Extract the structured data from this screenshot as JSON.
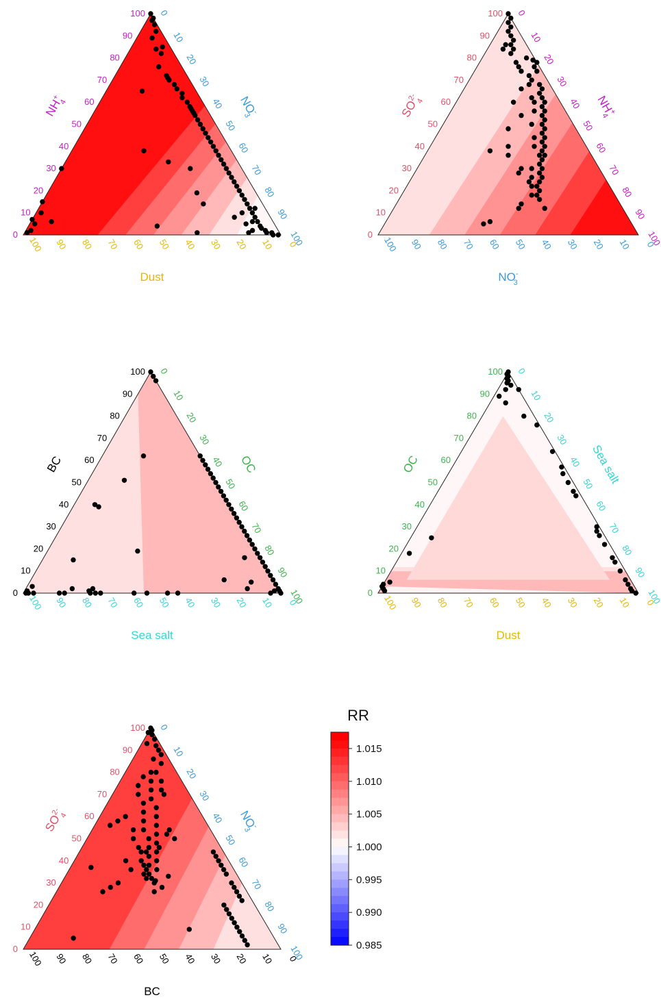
{
  "colorbar": {
    "title": "RR",
    "ticks": [
      "1.015",
      "1.010",
      "1.005",
      "1.000",
      "0.995",
      "0.990",
      "0.985"
    ],
    "tick_values": [
      1.015,
      1.01,
      1.005,
      1.0,
      0.995,
      0.99,
      0.985
    ],
    "range": [
      0.985,
      1.0175
    ],
    "low_color": "#0000ff",
    "mid_color": "#ffffff",
    "high_color": "#ff0000"
  },
  "tick_labels": [
    "0",
    "10",
    "20",
    "30",
    "40",
    "50",
    "60",
    "70",
    "80",
    "90",
    "100"
  ],
  "chart_data": [
    {
      "type": "scatter",
      "kind": "ternary",
      "left_label": "NH4+",
      "left_color": "#c71cc7",
      "right_label": "NO3-",
      "right_color": "#3a9ad9",
      "bottom_label": "Dust",
      "bottom_color": "#e6b800",
      "bands": [
        1.0155,
        1.0125,
        1.0095,
        1.007,
        1.0045,
        1.002
      ],
      "model": {
        "a": 0.6,
        "b": 1.2,
        "c": 0.38,
        "d": 1.12
      },
      "points": [
        [
          100,
          0
        ],
        [
          98,
          2
        ],
        [
          97,
          2
        ],
        [
          95,
          4
        ],
        [
          92,
          6
        ],
        [
          89,
          6
        ],
        [
          84,
          10
        ],
        [
          85,
          12
        ],
        [
          82,
          13
        ],
        [
          76,
          15
        ],
        [
          72,
          20
        ],
        [
          71,
          21
        ],
        [
          70,
          22
        ],
        [
          68,
          25
        ],
        [
          66,
          27
        ],
        [
          64,
          30
        ],
        [
          62,
          31
        ],
        [
          60,
          34
        ],
        [
          58,
          36
        ],
        [
          57,
          37
        ],
        [
          56,
          38
        ],
        [
          55,
          39
        ],
        [
          54,
          40
        ],
        [
          52,
          42
        ],
        [
          50,
          44
        ],
        [
          48,
          46
        ],
        [
          46,
          48
        ],
        [
          44,
          50
        ],
        [
          42,
          52
        ],
        [
          40,
          54
        ],
        [
          38,
          56
        ],
        [
          36,
          58
        ],
        [
          34,
          60
        ],
        [
          32,
          62
        ],
        [
          30,
          64
        ],
        [
          28,
          66
        ],
        [
          26,
          68
        ],
        [
          24,
          70
        ],
        [
          22,
          72
        ],
        [
          20,
          74
        ],
        [
          18,
          76
        ],
        [
          16,
          78
        ],
        [
          14,
          80
        ],
        [
          12,
          82
        ],
        [
          10,
          84
        ],
        [
          8,
          86
        ],
        [
          6,
          88
        ],
        [
          4,
          90
        ],
        [
          3,
          91
        ],
        [
          2,
          93
        ],
        [
          1,
          94
        ],
        [
          1,
          96
        ],
        [
          0,
          97
        ],
        [
          0,
          99
        ],
        [
          2,
          88
        ],
        [
          5,
          84
        ],
        [
          6,
          86
        ],
        [
          8,
          78
        ],
        [
          10,
          80
        ],
        [
          12,
          84
        ],
        [
          65,
          14
        ],
        [
          38,
          28
        ],
        [
          33,
          40
        ],
        [
          30,
          50
        ],
        [
          19,
          58
        ],
        [
          14,
          63
        ],
        [
          4,
          50
        ],
        [
          1,
          67
        ],
        [
          1,
          87
        ],
        [
          30,
          0
        ],
        [
          15,
          0
        ],
        [
          10,
          2
        ],
        [
          7,
          0
        ],
        [
          6,
          8
        ],
        [
          5,
          2
        ],
        [
          2,
          2
        ],
        [
          1,
          1
        ]
      ]
    },
    {
      "type": "scatter",
      "kind": "ternary",
      "left_label": "SO42-",
      "left_color": "#e0506a",
      "right_label": "NH4+",
      "right_color": "#c71cc7",
      "bottom_label": "NO3-",
      "bottom_color": "#3a9ad9",
      "bands": [
        1.0155,
        1.0125,
        1.0095,
        1.007,
        1.0045
      ],
      "model": {
        "a": 0.2,
        "b": 2.2,
        "c": 1.35,
        "d": 1.4
      },
      "points": [
        [
          100,
          0
        ],
        [
          98,
          2
        ],
        [
          96,
          2
        ],
        [
          94,
          4
        ],
        [
          92,
          4
        ],
        [
          90,
          6
        ],
        [
          88,
          8
        ],
        [
          86,
          8
        ],
        [
          84,
          10
        ],
        [
          82,
          10
        ],
        [
          78,
          14
        ],
        [
          76,
          16
        ],
        [
          72,
          22
        ],
        [
          80,
          17
        ],
        [
          79,
          20
        ],
        [
          76,
          22
        ],
        [
          74,
          24
        ],
        [
          70,
          24
        ],
        [
          68,
          24
        ],
        [
          68,
          28
        ],
        [
          66,
          30
        ],
        [
          64,
          30
        ],
        [
          62,
          32
        ],
        [
          60,
          34
        ],
        [
          58,
          34
        ],
        [
          56,
          36
        ],
        [
          54,
          36
        ],
        [
          52,
          38
        ],
        [
          50,
          38
        ],
        [
          48,
          40
        ],
        [
          46,
          40
        ],
        [
          44,
          42
        ],
        [
          42,
          42
        ],
        [
          40,
          44
        ],
        [
          38,
          44
        ],
        [
          36,
          46
        ],
        [
          34,
          46
        ],
        [
          32,
          46
        ],
        [
          30,
          48
        ],
        [
          28,
          48
        ],
        [
          26,
          50
        ],
        [
          24,
          50
        ],
        [
          22,
          50
        ],
        [
          20,
          52
        ],
        [
          18,
          52
        ],
        [
          16,
          54
        ],
        [
          60,
          30
        ],
        [
          56,
          32
        ],
        [
          50,
          34
        ],
        [
          44,
          38
        ],
        [
          40,
          40
        ],
        [
          36,
          44
        ],
        [
          30,
          44
        ],
        [
          26,
          46
        ],
        [
          22,
          48
        ],
        [
          18,
          50
        ],
        [
          48,
          26
        ],
        [
          40,
          30
        ],
        [
          36,
          32
        ],
        [
          66,
          22
        ],
        [
          62,
          28
        ],
        [
          60,
          22
        ],
        [
          54,
          28
        ],
        [
          30,
          40
        ],
        [
          28,
          40
        ],
        [
          24,
          46
        ],
        [
          14,
          48
        ],
        [
          12,
          48
        ],
        [
          12,
          58
        ],
        [
          6,
          40
        ],
        [
          5,
          38
        ],
        [
          38,
          24
        ],
        [
          74,
          18
        ],
        [
          78,
          22
        ],
        [
          84,
          6
        ],
        [
          86,
          6
        ]
      ]
    },
    {
      "type": "scatter",
      "kind": "ternary",
      "left_label": "BC",
      "left_color": "#000000",
      "right_label": "OC",
      "right_color": "#3cb44b",
      "bottom_label": "Sea salt",
      "bottom_color": "#33d6d6",
      "bands": [
        1.0045
      ],
      "model": {
        "a": 0.5,
        "b": 1.8,
        "c": 0.7,
        "d": 1.0
      },
      "points": [
        [
          100,
          0
        ],
        [
          98,
          2
        ],
        [
          96,
          4
        ],
        [
          62,
          38
        ],
        [
          60,
          40
        ],
        [
          58,
          42
        ],
        [
          56,
          44
        ],
        [
          54,
          46
        ],
        [
          52,
          48
        ],
        [
          50,
          50
        ],
        [
          48,
          52
        ],
        [
          46,
          54
        ],
        [
          44,
          56
        ],
        [
          42,
          58
        ],
        [
          40,
          60
        ],
        [
          38,
          62
        ],
        [
          36,
          64
        ],
        [
          34,
          66
        ],
        [
          32,
          68
        ],
        [
          30,
          70
        ],
        [
          28,
          72
        ],
        [
          26,
          74
        ],
        [
          24,
          76
        ],
        [
          22,
          78
        ],
        [
          20,
          80
        ],
        [
          18,
          82
        ],
        [
          16,
          84
        ],
        [
          14,
          86
        ],
        [
          12,
          88
        ],
        [
          10,
          90
        ],
        [
          8,
          92
        ],
        [
          6,
          94
        ],
        [
          4,
          96
        ],
        [
          2,
          98
        ],
        [
          1,
          99
        ],
        [
          0,
          100
        ],
        [
          62,
          16
        ],
        [
          51,
          14
        ],
        [
          40,
          8
        ],
        [
          39,
          10
        ],
        [
          19,
          35
        ],
        [
          16,
          78
        ],
        [
          15,
          12
        ],
        [
          5,
          86
        ],
        [
          6,
          75
        ],
        [
          2,
          86
        ],
        [
          0,
          96
        ],
        [
          1,
          97
        ],
        [
          0,
          60
        ],
        [
          0,
          56
        ],
        [
          0,
          48
        ],
        [
          0,
          43
        ],
        [
          0,
          30
        ],
        [
          0,
          28
        ],
        [
          0,
          26
        ],
        [
          0,
          16
        ],
        [
          0,
          14
        ],
        [
          1,
          25
        ],
        [
          2,
          26
        ],
        [
          0,
          4
        ],
        [
          0,
          2
        ],
        [
          1,
          1
        ],
        [
          0,
          1
        ],
        [
          3,
          2
        ],
        [
          2,
          18
        ]
      ]
    },
    {
      "type": "scatter",
      "kind": "ternary",
      "left_label": "OC",
      "left_color": "#3cb44b",
      "right_label": "Sea salt",
      "right_color": "#33d6d6",
      "bottom_label": "Dust",
      "bottom_color": "#e6b800",
      "bands": [
        1.0045,
        1.002
      ],
      "model": {
        "a": 0.35,
        "b": 1.6,
        "c": 0.7,
        "d": 1.0
      },
      "points": [
        [
          100,
          0
        ],
        [
          99,
          0
        ],
        [
          98,
          1
        ],
        [
          97,
          1
        ],
        [
          96,
          2
        ],
        [
          95,
          2
        ],
        [
          94,
          4
        ],
        [
          92,
          3
        ],
        [
          92,
          8
        ],
        [
          89,
          2
        ],
        [
          86,
          6
        ],
        [
          80,
          16
        ],
        [
          76,
          23
        ],
        [
          64,
          35
        ],
        [
          57,
          42
        ],
        [
          54,
          44
        ],
        [
          50,
          48
        ],
        [
          46,
          52
        ],
        [
          44,
          54
        ],
        [
          30,
          69
        ],
        [
          28,
          70
        ],
        [
          26,
          72
        ],
        [
          22,
          76
        ],
        [
          16,
          82
        ],
        [
          14,
          84
        ],
        [
          10,
          88
        ],
        [
          6,
          92
        ],
        [
          4,
          94
        ],
        [
          2,
          96
        ],
        [
          1,
          97
        ],
        [
          0,
          99
        ],
        [
          25,
          8
        ],
        [
          18,
          3
        ],
        [
          5,
          2
        ],
        [
          4,
          0
        ],
        [
          3,
          0
        ],
        [
          2,
          1
        ],
        [
          1,
          2
        ]
      ]
    },
    {
      "type": "scatter",
      "kind": "ternary",
      "left_label": "SO42-",
      "left_color": "#e0506a",
      "right_label": "NO3-",
      "right_color": "#3a9ad9",
      "bottom_label": "BC",
      "bottom_color": "#000000",
      "bands": [
        1.0125,
        1.0095,
        1.007,
        1.0045
      ],
      "model": {
        "a": 0.35,
        "b": 1.4,
        "c": 1.8,
        "d": 1.15
      },
      "points": [
        [
          100,
          0
        ],
        [
          99,
          1
        ],
        [
          98,
          0
        ],
        [
          97,
          2
        ],
        [
          95,
          4
        ],
        [
          93,
          2
        ],
        [
          92,
          6
        ],
        [
          90,
          8
        ],
        [
          88,
          10
        ],
        [
          86,
          8
        ],
        [
          84,
          12
        ],
        [
          80,
          10
        ],
        [
          78,
          8
        ],
        [
          76,
          12
        ],
        [
          74,
          8
        ],
        [
          72,
          14
        ],
        [
          70,
          10
        ],
        [
          68,
          16
        ],
        [
          66,
          14
        ],
        [
          64,
          20
        ],
        [
          62,
          16
        ],
        [
          60,
          22
        ],
        [
          58,
          18
        ],
        [
          56,
          24
        ],
        [
          54,
          20
        ],
        [
          52,
          26
        ],
        [
          50,
          24
        ],
        [
          48,
          28
        ],
        [
          46,
          26
        ],
        [
          44,
          30
        ],
        [
          42,
          28
        ],
        [
          40,
          32
        ],
        [
          38,
          30
        ],
        [
          36,
          34
        ],
        [
          34,
          32
        ],
        [
          32,
          34
        ],
        [
          30,
          36
        ],
        [
          28,
          40
        ],
        [
          26,
          38
        ],
        [
          54,
          16
        ],
        [
          50,
          18
        ],
        [
          46,
          22
        ],
        [
          44,
          24
        ],
        [
          40,
          26
        ],
        [
          38,
          28
        ],
        [
          36,
          30
        ],
        [
          34,
          30
        ],
        [
          32,
          32
        ],
        [
          50,
          34
        ],
        [
          52,
          30
        ],
        [
          46,
          30
        ],
        [
          44,
          26
        ],
        [
          36,
          24
        ],
        [
          30,
          22
        ],
        [
          28,
          20
        ],
        [
          26,
          18
        ],
        [
          33,
          40
        ],
        [
          31,
          36
        ],
        [
          37,
          8
        ],
        [
          40,
          20
        ],
        [
          20,
          68
        ],
        [
          18,
          70
        ],
        [
          16,
          72
        ],
        [
          14,
          74
        ],
        [
          12,
          76
        ],
        [
          10,
          78
        ],
        [
          8,
          80
        ],
        [
          6,
          82
        ],
        [
          4,
          84
        ],
        [
          2,
          86
        ],
        [
          30,
          66
        ],
        [
          28,
          68
        ],
        [
          26,
          70
        ],
        [
          24,
          72
        ],
        [
          22,
          74
        ],
        [
          34,
          62
        ],
        [
          36,
          60
        ],
        [
          38,
          58
        ],
        [
          40,
          56
        ],
        [
          42,
          54
        ],
        [
          44,
          52
        ],
        [
          9,
          60
        ],
        [
          5,
          17
        ],
        [
          80,
          12
        ],
        [
          76,
          16
        ],
        [
          72,
          18
        ],
        [
          70,
          20
        ],
        [
          60,
          10
        ],
        [
          58,
          8
        ],
        [
          56,
          6
        ],
        [
          54,
          30
        ]
      ]
    }
  ]
}
